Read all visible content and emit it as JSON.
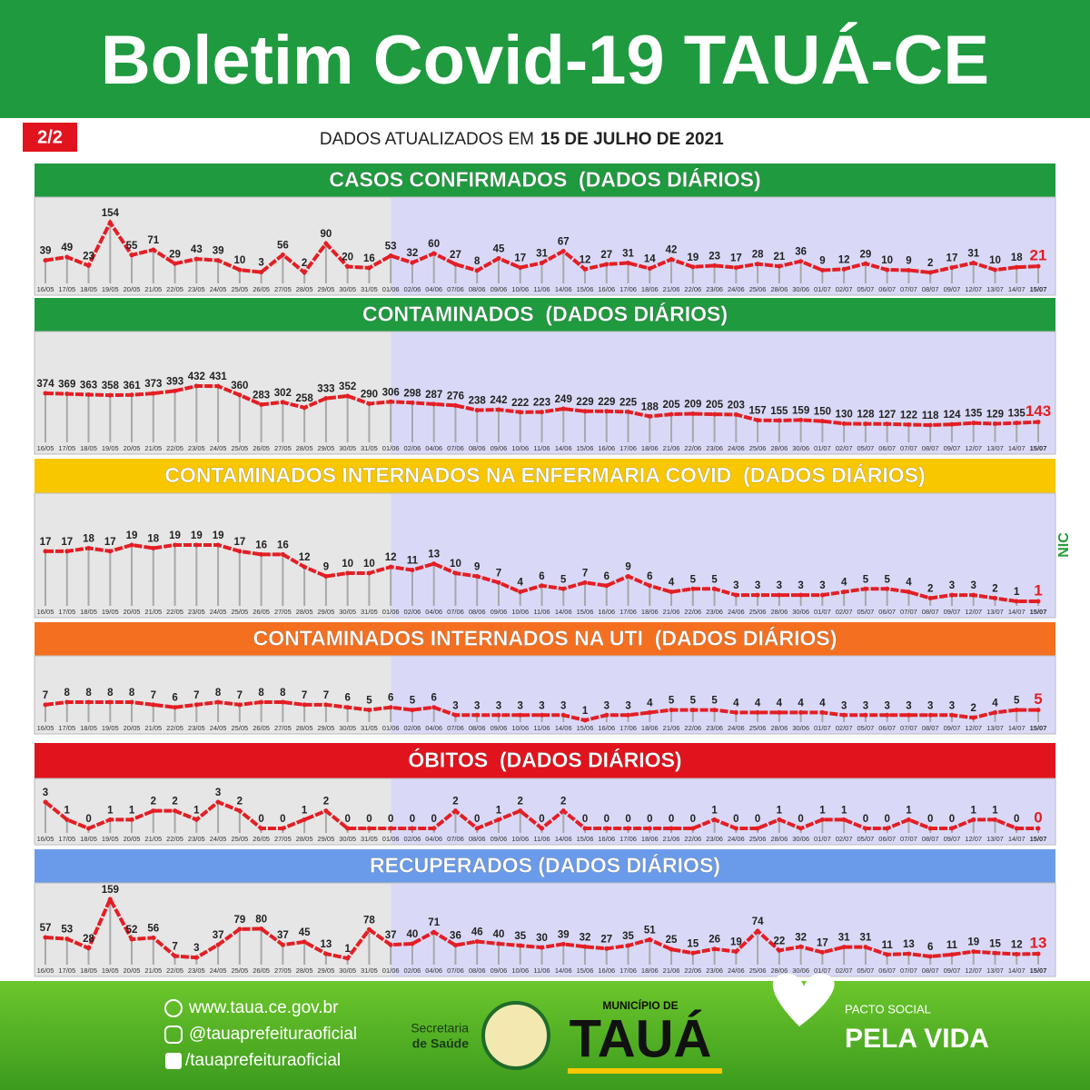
{
  "header": {
    "title": "Boletim Covid-19 TAUÁ-CE",
    "page": "2/2",
    "updated_prefix": "DADOS ATUALIZADOS EM",
    "updated_date": "15 DE JULHO DE 2021"
  },
  "chart_data": [
    {
      "type": "line",
      "title": "CASOS CONFIRMADOS  (DADOS DIÁRIOS)",
      "color": "#e31e24",
      "categories": [
        "16/05",
        "17/05",
        "18/05",
        "19/05",
        "20/05",
        "21/05",
        "22/05",
        "23/05",
        "24/05",
        "25/05",
        "26/05",
        "27/05",
        "28/05",
        "29/05",
        "30/05",
        "31/05",
        "01/06",
        "02/06",
        "04/06",
        "07/06",
        "08/06",
        "09/06",
        "10/06",
        "11/06",
        "14/06",
        "15/06",
        "16/06",
        "17/06",
        "18/06",
        "21/06",
        "22/06",
        "23/06",
        "24/06",
        "25/06",
        "28/06",
        "30/06",
        "01/07",
        "02/07",
        "05/07",
        "06/07",
        "07/07",
        "08/07",
        "09/07",
        "12/07",
        "13/07",
        "14/07",
        "15/07"
      ],
      "values": [
        39,
        49,
        23,
        154,
        55,
        71,
        29,
        43,
        39,
        10,
        3,
        56,
        2,
        90,
        20,
        16,
        53,
        32,
        60,
        27,
        8,
        45,
        17,
        31,
        67,
        12,
        27,
        31,
        14,
        42,
        19,
        23,
        17,
        28,
        21,
        36,
        9,
        12,
        29,
        10,
        9,
        2,
        17,
        31,
        10,
        18,
        21
      ]
    },
    {
      "type": "line",
      "title": "CONTAMINADOS  (DADOS DIÁRIOS)",
      "color": "#e31e24",
      "categories": [
        "16/05",
        "17/05",
        "18/05",
        "19/05",
        "20/05",
        "21/05",
        "22/05",
        "23/05",
        "24/05",
        "25/05",
        "26/05",
        "27/05",
        "28/05",
        "29/05",
        "30/05",
        "31/05",
        "01/06",
        "02/06",
        "04/06",
        "07/06",
        "08/06",
        "09/06",
        "10/06",
        "11/06",
        "14/06",
        "15/06",
        "16/06",
        "17/06",
        "18/06",
        "21/06",
        "22/06",
        "23/06",
        "24/06",
        "25/06",
        "28/06",
        "30/06",
        "01/07",
        "02/07",
        "05/07",
        "06/07",
        "07/07",
        "08/07",
        "09/07",
        "12/07",
        "13/07",
        "14/07",
        "15/07"
      ],
      "values": [
        374,
        369,
        363,
        358,
        361,
        373,
        393,
        432,
        431,
        360,
        283,
        302,
        258,
        333,
        352,
        290,
        306,
        298,
        287,
        276,
        238,
        242,
        222,
        223,
        249,
        229,
        229,
        225,
        188,
        205,
        209,
        205,
        203,
        157,
        155,
        159,
        150,
        130,
        128,
        127,
        122,
        118,
        124,
        135,
        129,
        135,
        143
      ]
    },
    {
      "type": "line",
      "title": "CONTAMINADOS INTERNADOS NA ENFERMARIA COVID  (DADOS DIÁRIOS)",
      "color": "#e31e24",
      "categories": [
        "16/05",
        "17/05",
        "18/05",
        "19/05",
        "20/05",
        "21/05",
        "22/05",
        "23/05",
        "24/05",
        "25/05",
        "26/05",
        "27/05",
        "28/05",
        "29/05",
        "30/05",
        "31/05",
        "01/06",
        "02/06",
        "04/06",
        "07/06",
        "08/06",
        "09/06",
        "10/06",
        "11/06",
        "14/06",
        "15/06",
        "16/06",
        "17/06",
        "18/06",
        "21/06",
        "22/06",
        "23/06",
        "24/06",
        "25/06",
        "28/06",
        "30/06",
        "01/07",
        "02/07",
        "05/07",
        "06/07",
        "07/07",
        "08/07",
        "09/07",
        "12/07",
        "13/07",
        "14/07",
        "15/07"
      ],
      "values": [
        17,
        17,
        18,
        17,
        19,
        18,
        19,
        19,
        19,
        17,
        16,
        16,
        12,
        9,
        10,
        10,
        12,
        11,
        13,
        10,
        9,
        7,
        4,
        6,
        5,
        7,
        6,
        9,
        6,
        4,
        5,
        5,
        3,
        3,
        3,
        3,
        3,
        4,
        5,
        5,
        4,
        2,
        3,
        3,
        2,
        1,
        1
      ]
    },
    {
      "type": "line",
      "title": "CONTAMINADOS INTERNADOS NA UTI  (DADOS DIÁRIOS)",
      "color": "#e31e24",
      "categories": [
        "16/05",
        "17/05",
        "18/05",
        "19/05",
        "20/05",
        "21/05",
        "22/05",
        "23/05",
        "24/05",
        "25/05",
        "26/05",
        "27/05",
        "28/05",
        "29/05",
        "30/05",
        "31/05",
        "01/06",
        "02/06",
        "04/06",
        "07/06",
        "08/06",
        "09/06",
        "10/06",
        "11/06",
        "14/06",
        "15/06",
        "16/06",
        "17/06",
        "18/06",
        "21/06",
        "22/06",
        "23/06",
        "24/06",
        "25/06",
        "28/06",
        "30/06",
        "01/07",
        "02/07",
        "05/07",
        "06/07",
        "07/07",
        "08/07",
        "09/07",
        "12/07",
        "13/07",
        "14/07",
        "15/07"
      ],
      "values": [
        7,
        8,
        8,
        8,
        8,
        7,
        6,
        7,
        8,
        7,
        8,
        8,
        7,
        7,
        6,
        5,
        6,
        5,
        6,
        3,
        3,
        3,
        3,
        3,
        3,
        1,
        3,
        3,
        4,
        5,
        5,
        5,
        4,
        4,
        4,
        4,
        4,
        3,
        3,
        3,
        3,
        3,
        3,
        2,
        4,
        5,
        5
      ]
    },
    {
      "type": "line",
      "title": "ÓBITOS  (DADOS DIÁRIOS)",
      "color": "#e31e24",
      "categories": [
        "16/05",
        "17/05",
        "18/05",
        "19/05",
        "20/05",
        "21/05",
        "22/05",
        "23/05",
        "24/05",
        "25/05",
        "26/05",
        "27/05",
        "28/05",
        "29/05",
        "30/05",
        "31/05",
        "01/06",
        "02/06",
        "04/06",
        "07/06",
        "08/06",
        "09/06",
        "10/06",
        "11/06",
        "14/06",
        "15/06",
        "16/06",
        "17/06",
        "18/06",
        "21/06",
        "22/06",
        "23/06",
        "24/06",
        "25/06",
        "28/06",
        "30/06",
        "01/07",
        "02/07",
        "05/07",
        "06/07",
        "07/07",
        "08/07",
        "09/07",
        "12/07",
        "13/07",
        "14/07",
        "15/07"
      ],
      "values": [
        3,
        1,
        0,
        1,
        1,
        2,
        2,
        1,
        3,
        2,
        0,
        0,
        1,
        2,
        0,
        0,
        0,
        0,
        0,
        2,
        0,
        1,
        2,
        0,
        2,
        0,
        0,
        0,
        0,
        0,
        0,
        1,
        0,
        0,
        1,
        0,
        1,
        1,
        0,
        0,
        1,
        0,
        0,
        1,
        1,
        0,
        0
      ]
    },
    {
      "type": "line",
      "title": "RECUPERADOS (DADOS DIÁRIOS)",
      "color": "#e31e24",
      "categories": [
        "16/05",
        "17/05",
        "18/05",
        "19/05",
        "20/05",
        "21/05",
        "22/05",
        "23/05",
        "24/05",
        "25/05",
        "26/05",
        "27/05",
        "28/05",
        "29/05",
        "30/05",
        "31/05",
        "01/06",
        "02/06",
        "04/06",
        "07/06",
        "08/06",
        "09/06",
        "10/06",
        "11/06",
        "14/06",
        "15/06",
        "16/06",
        "17/06",
        "18/06",
        "21/06",
        "22/06",
        "23/06",
        "24/06",
        "25/06",
        "28/06",
        "30/06",
        "01/07",
        "02/07",
        "05/07",
        "06/07",
        "07/07",
        "08/07",
        "09/07",
        "12/07",
        "13/07",
        "14/07",
        "15/07"
      ],
      "values": [
        57,
        53,
        28,
        159,
        52,
        56,
        7,
        3,
        37,
        79,
        80,
        37,
        45,
        13,
        1,
        78,
        37,
        40,
        71,
        36,
        46,
        40,
        35,
        30,
        39,
        32,
        27,
        35,
        51,
        25,
        15,
        26,
        19,
        74,
        22,
        32,
        17,
        31,
        31,
        11,
        13,
        6,
        11,
        19,
        15,
        12,
        13
      ]
    }
  ],
  "side_logo": "NIC",
  "footer": {
    "website": "www.taua.ce.gov.br",
    "instagram": "@tauaprefeituraoficial",
    "facebook": "/tauaprefeituraoficial",
    "secretaria_line1": "Secretaria",
    "secretaria_line2": "de Saúde",
    "municipio": "MUNICÍPIO DE",
    "city": "TAUÁ",
    "pacto": "PACTO SOCIAL",
    "pela_vida": "PELA VIDA"
  }
}
